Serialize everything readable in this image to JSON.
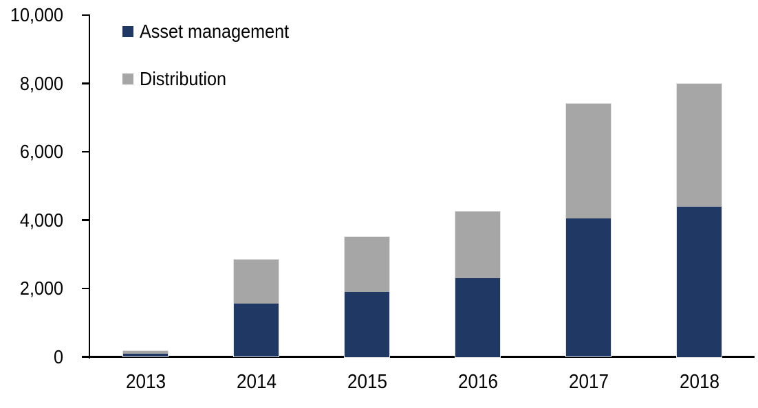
{
  "chart_data": {
    "type": "bar",
    "stacked": true,
    "title": "",
    "xlabel": "",
    "ylabel": "",
    "categories": [
      "2013",
      "2014",
      "2015",
      "2016",
      "2017",
      "2018"
    ],
    "series": [
      {
        "name": "Asset management",
        "color": "#1f3864",
        "values": [
          100,
          1550,
          1900,
          2300,
          4050,
          4400
        ]
      },
      {
        "name": "Distribution",
        "color": "#a6a6a6",
        "values": [
          75,
          1300,
          1600,
          1950,
          3350,
          3600
        ]
      }
    ],
    "totals": [
      175,
      2850,
      3500,
      4250,
      7400,
      8000
    ],
    "ylim": [
      0,
      10000
    ],
    "yticks": [
      {
        "value": 0,
        "label": "0"
      },
      {
        "value": 2000,
        "label": "2,000"
      },
      {
        "value": 4000,
        "label": "4,000"
      },
      {
        "value": 6000,
        "label": "6,000"
      },
      {
        "value": 8000,
        "label": "8,000"
      },
      {
        "value": 10000,
        "label": "10,000"
      }
    ],
    "grid": false,
    "legend_position": "top-left-inside",
    "axis_color": "#000000",
    "background": "#ffffff"
  }
}
